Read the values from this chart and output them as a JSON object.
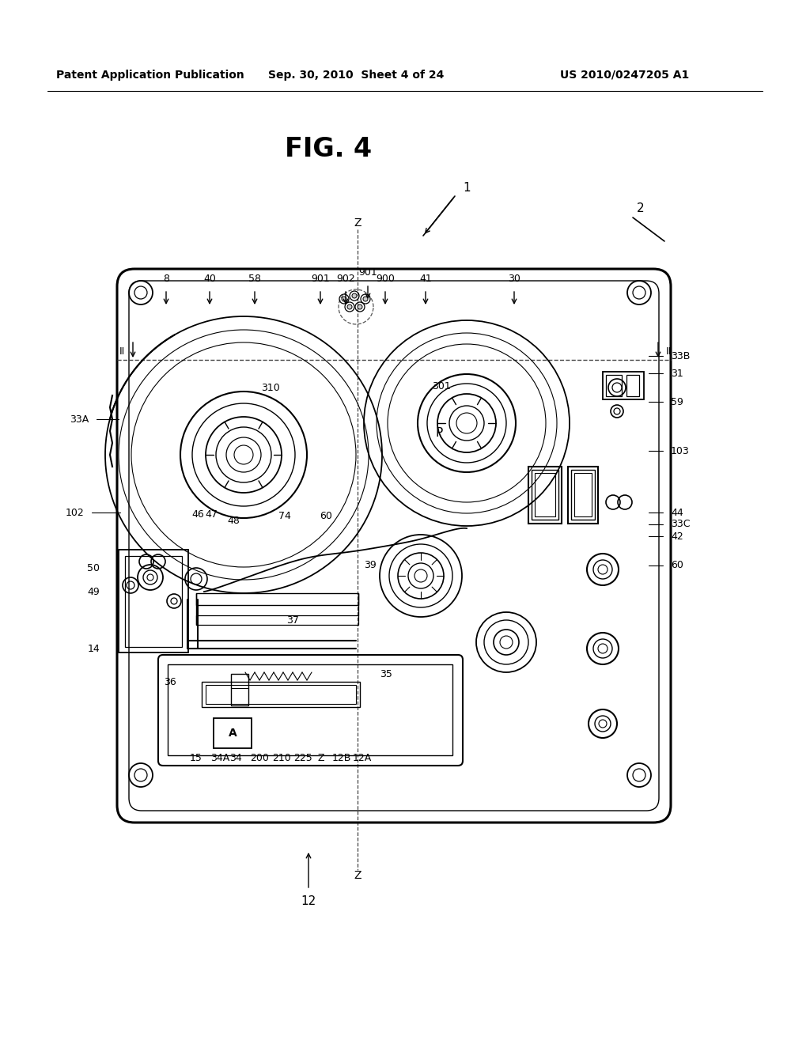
{
  "bg_color": "#ffffff",
  "text_color": "#000000",
  "line_color": "#000000",
  "title": "FIG. 4",
  "header_left": "Patent Application Publication",
  "header_mid": "Sep. 30, 2010  Sheet 4 of 24",
  "header_right": "US 2010/0247205 A1",
  "fig_width": 10.24,
  "fig_height": 13.2,
  "dpi": 100
}
